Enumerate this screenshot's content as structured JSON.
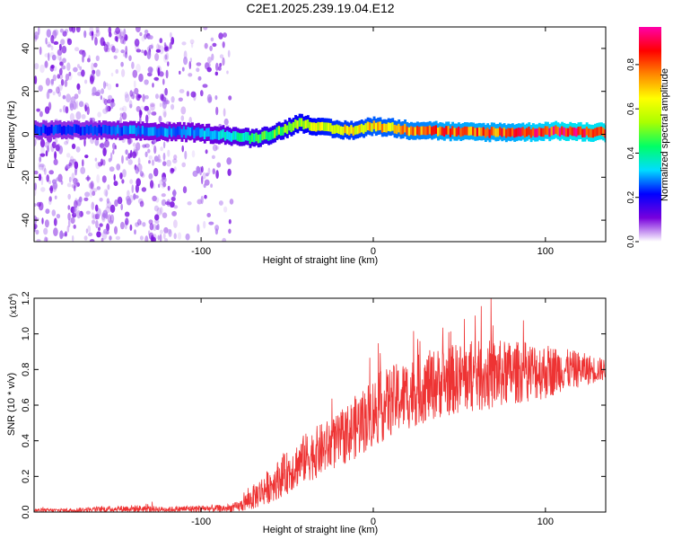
{
  "title": "C2E1.2025.239.19.04.E12",
  "chart_data": [
    {
      "type": "heatmap",
      "xlabel": "Height of straight line (km)",
      "ylabel": "Frequency (Hz)",
      "xlim": [
        -197,
        135
      ],
      "ylim": [
        -50,
        50
      ],
      "xticks": [
        -100,
        0,
        100
      ],
      "yticks": [
        -40,
        -20,
        0,
        20,
        40
      ],
      "colorbar": {
        "label": "Normalized spectral amplitude",
        "range": [
          0,
          0.97
        ],
        "ticks": [
          "0.0",
          "0.2",
          "0.4",
          "0.6",
          "0.8"
        ],
        "colors": [
          "#ffffff",
          "#7700dd",
          "#0000ff",
          "#00ddff",
          "#00ff66",
          "#aaff00",
          "#ffff00",
          "#ff8800",
          "#ff0000",
          "#ff00aa"
        ]
      },
      "ridge": {
        "x": [
          -197,
          -170,
          -140,
          -110,
          -90,
          -80,
          -70,
          -60,
          -50,
          -45,
          -40,
          -30,
          -20,
          -10,
          0,
          10,
          20,
          30,
          40,
          50,
          60,
          70,
          80,
          90,
          100,
          110,
          120,
          135
        ],
        "freq": [
          2,
          2,
          1.5,
          1,
          0,
          -1,
          -2,
          0,
          3,
          5,
          5,
          3,
          2,
          2,
          4,
          3,
          2,
          2,
          1.5,
          1,
          1,
          1,
          1,
          1,
          1.5,
          1.5,
          1,
          1
        ],
        "amplitude": [
          0.25,
          0.25,
          0.3,
          0.3,
          0.35,
          0.4,
          0.45,
          0.5,
          0.55,
          0.6,
          0.6,
          0.65,
          0.7,
          0.7,
          0.75,
          0.75,
          0.8,
          0.8,
          0.85,
          0.85,
          0.85,
          0.85,
          0.85,
          0.9,
          0.9,
          0.95,
          0.95,
          0.95
        ]
      },
      "noise_band": {
        "x_from": -197,
        "x_to": -82,
        "amplitude": 0.12
      }
    },
    {
      "type": "line",
      "xlabel": "Height of straight line (km)",
      "ylabel": "SNR (10 * v/v)",
      "multiplier": "(x10",
      "multiplier_exp": "4",
      "multiplier_close": ")",
      "xlim": [
        -197,
        135
      ],
      "ylim": [
        0,
        1.2
      ],
      "xticks": [
        -100,
        0,
        100
      ],
      "yticks": [
        "0.0",
        "0.2",
        "0.4",
        "0.6",
        "0.8",
        "1.0",
        "1.2"
      ],
      "series": [
        {
          "name": "SNR",
          "color": "#ee3333",
          "x": [
            -197,
            -180,
            -160,
            -140,
            -120,
            -100,
            -85,
            -78,
            -70,
            -60,
            -50,
            -40,
            -30,
            -20,
            -10,
            0,
            10,
            20,
            30,
            40,
            50,
            60,
            70,
            80,
            90,
            100,
            110,
            120,
            135
          ],
          "mean": [
            0.01,
            0.01,
            0.015,
            0.02,
            0.015,
            0.02,
            0.02,
            0.03,
            0.08,
            0.15,
            0.22,
            0.3,
            0.35,
            0.4,
            0.48,
            0.56,
            0.62,
            0.66,
            0.7,
            0.73,
            0.75,
            0.76,
            0.77,
            0.78,
            0.79,
            0.79,
            0.8,
            0.8,
            0.8
          ],
          "spread": [
            0.01,
            0.01,
            0.015,
            0.02,
            0.015,
            0.02,
            0.02,
            0.03,
            0.07,
            0.1,
            0.12,
            0.14,
            0.15,
            0.15,
            0.18,
            0.2,
            0.2,
            0.2,
            0.2,
            0.2,
            0.2,
            0.2,
            0.2,
            0.18,
            0.17,
            0.16,
            0.12,
            0.1,
            0.06
          ]
        }
      ]
    }
  ]
}
